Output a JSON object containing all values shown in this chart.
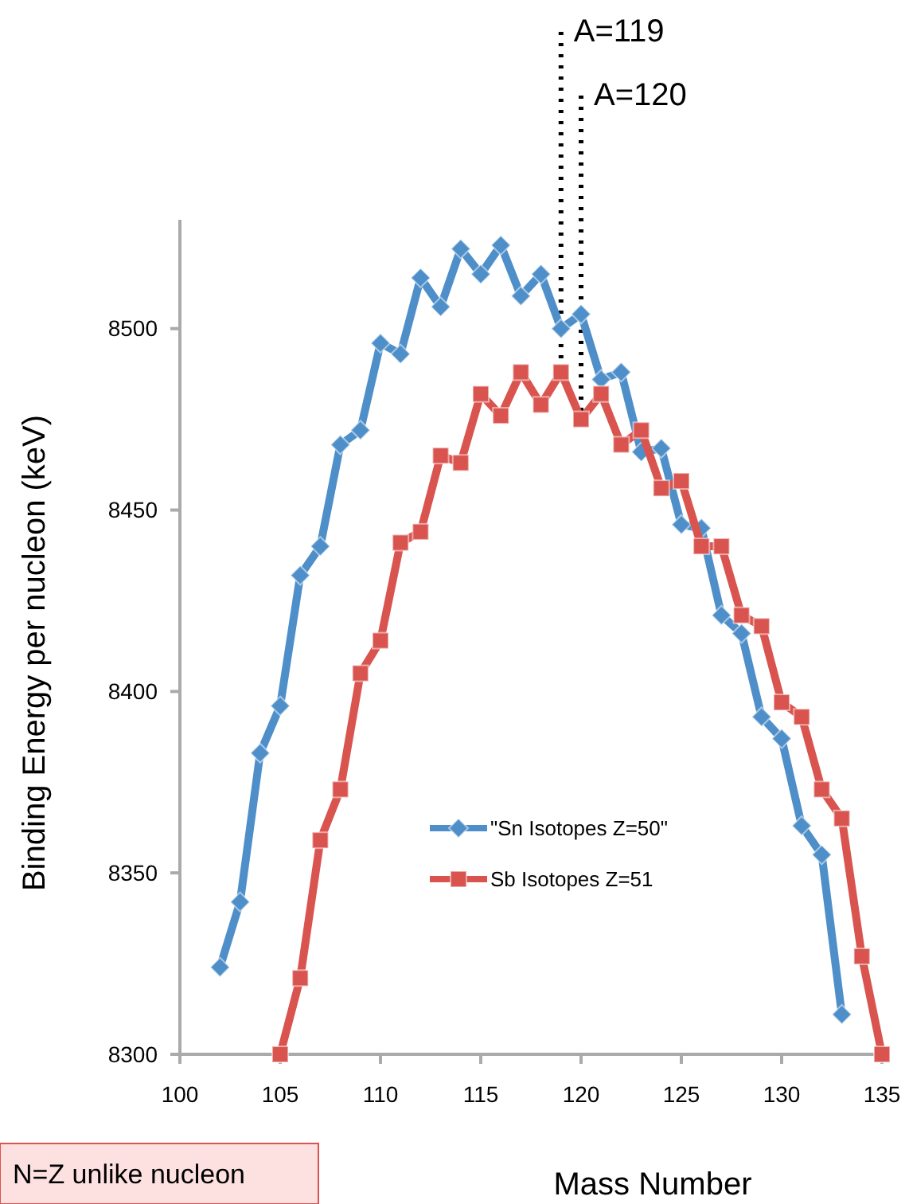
{
  "chart_data": {
    "type": "line",
    "xlabel": "Mass Number",
    "ylabel": "Binding Energy per nucleon (keV)",
    "xlim": [
      100,
      135
    ],
    "xticks": [
      100,
      105,
      110,
      115,
      120,
      125,
      130,
      135
    ],
    "ylim": [
      8300,
      8530
    ],
    "yticks": [
      8300,
      8350,
      8400,
      8450,
      8500
    ],
    "grid": false,
    "legend": "bottom",
    "series": [
      {
        "name": "\"Sn Isotopes Z=50\"",
        "color": "#4f8fc9",
        "marker": "diamond",
        "x": [
          102,
          103,
          104,
          105,
          106,
          107,
          108,
          109,
          110,
          111,
          112,
          113,
          114,
          115,
          116,
          117,
          118,
          119,
          120,
          121,
          122,
          123,
          124,
          125,
          126,
          127,
          128,
          129,
          130,
          131,
          132,
          133
        ],
        "values": [
          8324,
          8342,
          8383,
          8396,
          8432,
          8440,
          8468,
          8472,
          8496,
          8493,
          8514,
          8506,
          8522,
          8515,
          8523,
          8509,
          8515,
          8500,
          8504,
          8486,
          8488,
          8466,
          8467,
          8446,
          8445,
          8421,
          8416,
          8393,
          8387,
          8363,
          8355,
          8311
        ]
      },
      {
        "name": "Sb Isotopes Z=51",
        "color": "#d9544f",
        "marker": "square",
        "x": [
          105,
          106,
          107,
          108,
          109,
          110,
          111,
          112,
          113,
          114,
          115,
          116,
          117,
          118,
          119,
          120,
          121,
          122,
          123,
          124,
          125,
          126,
          127,
          128,
          129,
          130,
          131,
          132,
          133,
          134,
          135
        ],
        "values": [
          8300,
          8321,
          8359,
          8373,
          8405,
          8414,
          8441,
          8444,
          8465,
          8463,
          8482,
          8476,
          8488,
          8479,
          8488,
          8475,
          8482,
          8468,
          8472,
          8456,
          8458,
          8440,
          8440,
          8421,
          8418,
          8397,
          8393,
          8373,
          8365,
          8327,
          8300
        ]
      }
    ],
    "ref_lines": [
      {
        "axis": "x",
        "value": 119,
        "label": "A=119",
        "line_style": "dotted",
        "color": "#000000"
      },
      {
        "axis": "x",
        "value": 120,
        "label": "A=120",
        "line_style": "dotted",
        "color": "#000000"
      }
    ],
    "annotations": [
      "N=Z unlike nucleon"
    ]
  }
}
